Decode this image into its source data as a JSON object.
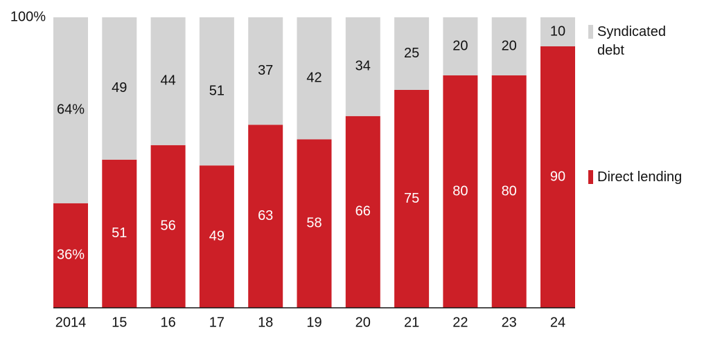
{
  "chart_data": {
    "type": "stacked-bar",
    "categories": [
      "2014",
      "15",
      "16",
      "17",
      "18",
      "19",
      "20",
      "21",
      "22",
      "23",
      "24"
    ],
    "series": [
      {
        "name": "Direct lending",
        "color": "#cc1f27",
        "values": [
          36,
          51,
          56,
          49,
          63,
          58,
          66,
          75,
          80,
          80,
          90
        ],
        "value_labels": [
          "36%",
          "51",
          "56",
          "49",
          "63",
          "58",
          "66",
          "75",
          "80",
          "80",
          "90"
        ]
      },
      {
        "name": "Syndicated debt",
        "color": "#d3d3d3",
        "values": [
          64,
          49,
          44,
          51,
          37,
          42,
          34,
          25,
          20,
          20,
          10
        ],
        "value_labels": [
          "64%",
          "49",
          "44",
          "51",
          "37",
          "42",
          "34",
          "25",
          "20",
          "20",
          "10"
        ]
      }
    ],
    "ylim": [
      0,
      100
    ],
    "yticks": [
      {
        "value": 100,
        "label": "100%"
      }
    ]
  }
}
